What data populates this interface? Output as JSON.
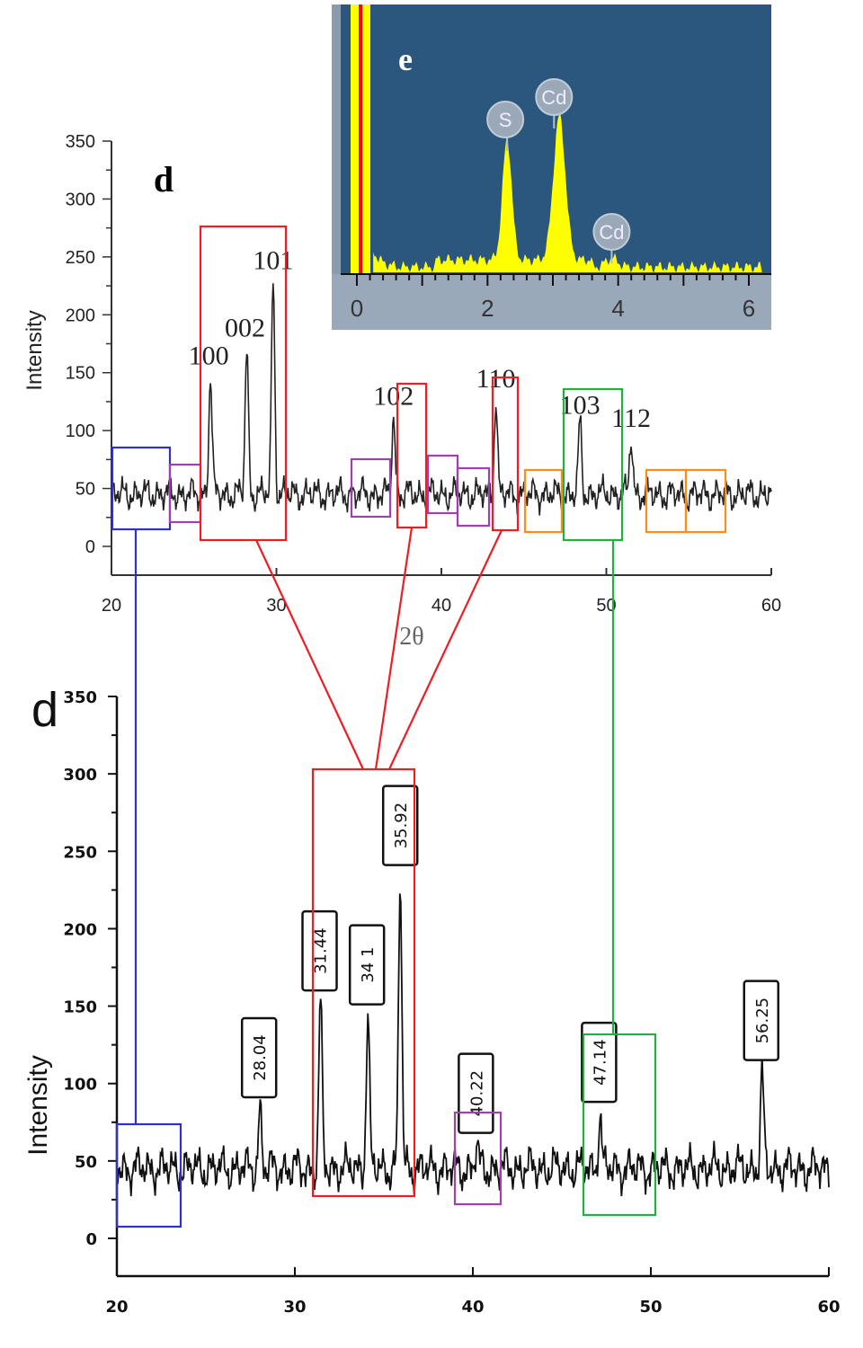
{
  "chart_data": [
    {
      "type": "line",
      "panel_label": "d",
      "ylabel": "Intensity",
      "xlabel": "2θ",
      "xlim": [
        20,
        60
      ],
      "ylim": [
        0,
        350
      ],
      "xticks": [
        20,
        30,
        40,
        50,
        60
      ],
      "yticks": [
        0,
        50,
        100,
        150,
        200,
        250,
        300,
        350
      ],
      "baseline": 45,
      "peaks": [
        {
          "x": 26.0,
          "y": 148,
          "label": "100"
        },
        {
          "x": 28.2,
          "y": 172,
          "label": "002"
        },
        {
          "x": 29.8,
          "y": 230,
          "label": "101"
        },
        {
          "x": 37.1,
          "y": 113,
          "label": "102"
        },
        {
          "x": 43.3,
          "y": 128,
          "label": "110"
        },
        {
          "x": 48.4,
          "y": 105,
          "label": "103"
        },
        {
          "x": 51.5,
          "y": 94,
          "label": "112"
        }
      ]
    },
    {
      "type": "area",
      "panel_label": "e",
      "xlim": [
        0,
        6.2
      ],
      "xticks": [
        0,
        2,
        4,
        6
      ],
      "peaks": [
        {
          "x": 2.3,
          "rel": 0.54,
          "label": "S"
        },
        {
          "x": 3.1,
          "rel": 0.64,
          "label": "Cd"
        },
        {
          "x": 3.9,
          "rel": 0.04,
          "label": "Cd"
        }
      ],
      "colors": {
        "background": "#2b567e",
        "fill": "#ffff00",
        "marker": "#ff0000"
      }
    },
    {
      "type": "line",
      "panel_label": "d",
      "ylabel": "Intensity",
      "xlim": [
        20,
        60
      ],
      "ylim": [
        0,
        350
      ],
      "xticks": [
        20,
        30,
        40,
        50,
        60
      ],
      "yticks": [
        0,
        50,
        100,
        150,
        200,
        250,
        300,
        350
      ],
      "baseline": 45,
      "peaks": [
        {
          "x": 28.04,
          "y": 83,
          "label": "28.04"
        },
        {
          "x": 31.44,
          "y": 152,
          "label": "31.44"
        },
        {
          "x": 34.1,
          "y": 143,
          "label": "34 1"
        },
        {
          "x": 35.92,
          "y": 233,
          "label": "35.92"
        },
        {
          "x": 40.22,
          "y": 60,
          "label": "40.22"
        },
        {
          "x": 47.14,
          "y": 80,
          "label": "47.14"
        },
        {
          "x": 56.25,
          "y": 107,
          "label": "56.25"
        }
      ]
    }
  ],
  "highlight_colors": {
    "red": "#ee1c24",
    "blue": "#3030d0",
    "purple": "#a040b0",
    "orange": "#ff8c1a",
    "green": "#20b040"
  }
}
